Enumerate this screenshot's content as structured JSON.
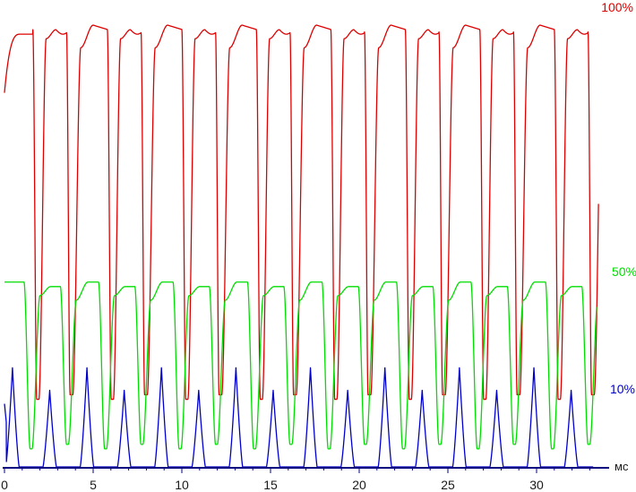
{
  "chart_data": {
    "type": "line",
    "x_unit": "мс",
    "xlim": [
      0,
      33.5
    ],
    "ylim": [
      0,
      100
    ],
    "x_ticks": [
      0,
      5,
      10,
      15,
      20,
      25,
      30
    ],
    "x_tick_labels": [
      "0",
      "5",
      "10",
      "15",
      "20",
      "25",
      "30"
    ],
    "grid": false,
    "legend": "none",
    "axis_color": "#000080",
    "pulse_period_ms": 4.2,
    "series": [
      {
        "name": "100%",
        "color": "#dd0000",
        "peak": 98,
        "trough": 15,
        "start": 83
      },
      {
        "name": "50%",
        "color": "#00dd00",
        "peak": 41,
        "trough": 4,
        "start": 41
      },
      {
        "name": "10%",
        "color": "#0000cc",
        "peak_high": 22,
        "peak_low": 17,
        "baseline": 0,
        "start": 14
      }
    ]
  }
}
